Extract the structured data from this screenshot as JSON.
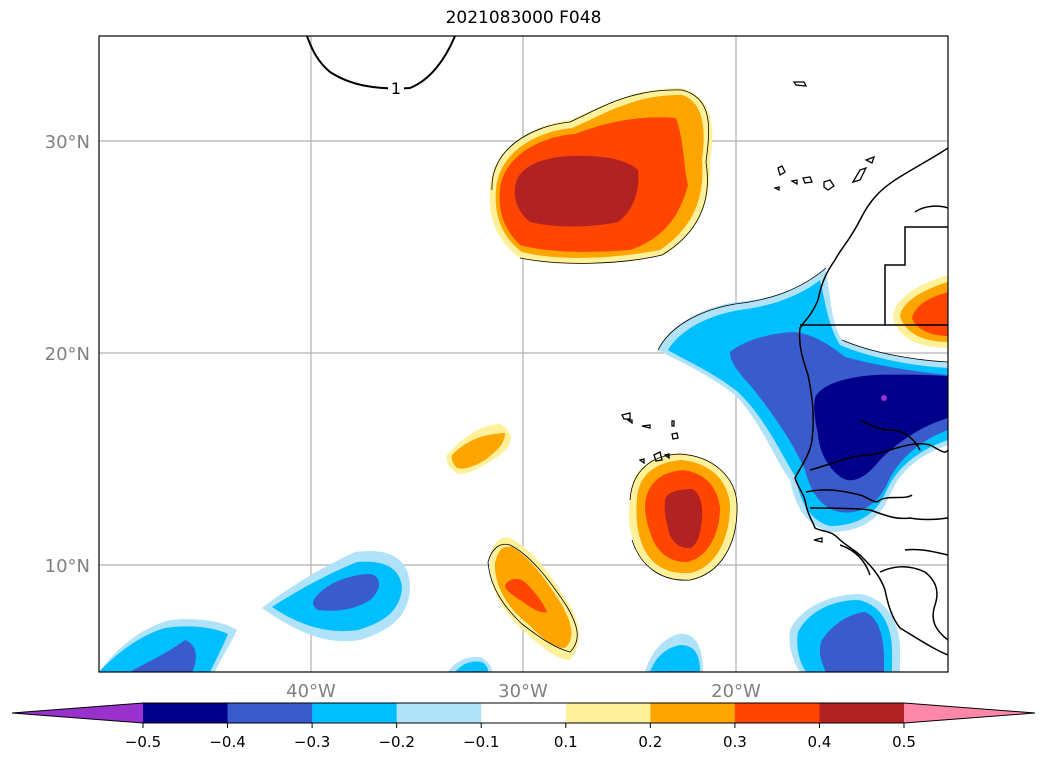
{
  "title": "2021083000 F048",
  "lat_labels": [
    "30°N",
    "20°N",
    "10°N"
  ],
  "lon_labels": [
    "40°W",
    "30°W",
    "20°W"
  ],
  "contour_label": "1",
  "colorbar": {
    "ticks": [
      "−0.5",
      "−0.4",
      "−0.3",
      "−0.2",
      "−0.1",
      "0.1",
      "0.2",
      "0.3",
      "0.4",
      "0.5"
    ],
    "colors": [
      "#9932cc",
      "#00008b",
      "#3a5bcb",
      "#00bfff",
      "#b0e2fa",
      "#ffffff",
      "#fff09a",
      "#ffa500",
      "#ff4500",
      "#b22222",
      "#ff88aa"
    ]
  },
  "colors": {
    "coast": "#000000",
    "grid": "#b0b0b0",
    "axis_label": "#808080"
  }
}
